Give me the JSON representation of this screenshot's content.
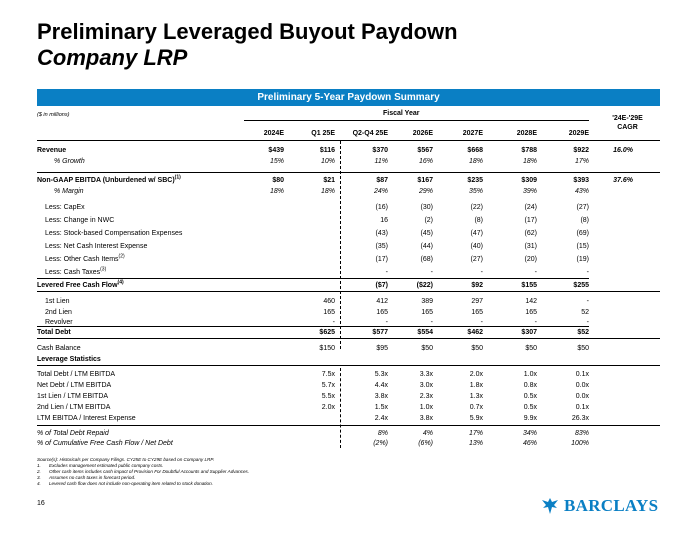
{
  "title": {
    "line1": "Preliminary Leveraged Buyout Paydown",
    "line2": "Company LRP"
  },
  "banner": "Preliminary 5-Year Paydown Summary",
  "units": "($ in millions)",
  "fiscal_year_label": "Fiscal Year",
  "cagr_header": {
    "line1": "'24E-'29E",
    "line2": "CAGR"
  },
  "columns": [
    "2024E",
    "Q1 25E",
    "Q2-Q4 25E",
    "2026E",
    "2027E",
    "2028E",
    "2029E"
  ],
  "rows": {
    "revenue": {
      "label": "Revenue",
      "v": [
        "$439",
        "$116",
        "$370",
        "$567",
        "$668",
        "$788",
        "$922"
      ],
      "cagr": "16.0%"
    },
    "growth": {
      "label": "% Growth",
      "v": [
        "15%",
        "10%",
        "11%",
        "16%",
        "18%",
        "18%",
        "17%"
      ]
    },
    "ebitda": {
      "label": "Non-GAAP EBITDA (Unburdened w/ SBC)",
      "sup": "(1)",
      "v": [
        "$80",
        "$21",
        "$87",
        "$167",
        "$235",
        "$309",
        "$393"
      ],
      "cagr": "37.6%"
    },
    "margin": {
      "label": "% Margin",
      "v": [
        "18%",
        "18%",
        "24%",
        "29%",
        "35%",
        "39%",
        "43%"
      ]
    },
    "capex": {
      "label": "Less: CapEx",
      "v": [
        "",
        "",
        "(16)",
        "(30)",
        "(22)",
        "(24)",
        "(27)"
      ]
    },
    "nwc": {
      "label": "Less: Change in NWC",
      "v": [
        "",
        "",
        "16",
        "(2)",
        "(8)",
        "(17)",
        "(8)"
      ]
    },
    "sbc": {
      "label": "Less: Stock-based Compensation Expenses",
      "v": [
        "",
        "",
        "(43)",
        "(45)",
        "(47)",
        "(62)",
        "(69)"
      ]
    },
    "interest": {
      "label": "Less: Net Cash Interest Expense",
      "v": [
        "",
        "",
        "(35)",
        "(44)",
        "(40)",
        "(31)",
        "(15)"
      ]
    },
    "other": {
      "label": "Less: Other Cash Items",
      "sup": "(2)",
      "v": [
        "",
        "",
        "(17)",
        "(68)",
        "(27)",
        "(20)",
        "(19)"
      ]
    },
    "taxes": {
      "label": "Less: Cash Taxes",
      "sup": "(3)",
      "v": [
        "",
        "",
        "-",
        "-",
        "-",
        "-",
        "-"
      ]
    },
    "lfcf": {
      "label": "Levered Free Cash Flow",
      "sup": "(4)",
      "v": [
        "",
        "",
        "($7)",
        "($22)",
        "$92",
        "$155",
        "$255"
      ]
    },
    "lien1": {
      "label": "1st Lien",
      "v": [
        "",
        "460",
        "412",
        "389",
        "297",
        "142",
        "-"
      ]
    },
    "lien2": {
      "label": "2nd Lien",
      "v": [
        "",
        "165",
        "165",
        "165",
        "165",
        "165",
        "52"
      ]
    },
    "revolver": {
      "label": "Revolver",
      "v": [
        "",
        "-",
        "-",
        "-",
        "-",
        "-",
        "-"
      ]
    },
    "totaldebt": {
      "label": "Total Debt",
      "v": [
        "",
        "$625",
        "$577",
        "$554",
        "$462",
        "$307",
        "$52"
      ]
    },
    "cash": {
      "label": "Cash Balance",
      "v": [
        "",
        "$150",
        "$95",
        "$50",
        "$50",
        "$50",
        "$50"
      ]
    },
    "lev_header": {
      "label": "Leverage Statistics"
    },
    "td_ebitda": {
      "label": "Total Debt / LTM EBITDA",
      "v": [
        "",
        "7.5x",
        "5.3x",
        "3.3x",
        "2.0x",
        "1.0x",
        "0.1x"
      ]
    },
    "nd_ebitda": {
      "label": "Net Debt / LTM EBITDA",
      "v": [
        "",
        "5.7x",
        "4.4x",
        "3.0x",
        "1.8x",
        "0.8x",
        "0.0x"
      ]
    },
    "l1_ebitda": {
      "label": "1st Lien / LTM EBITDA",
      "v": [
        "",
        "5.5x",
        "3.8x",
        "2.3x",
        "1.3x",
        "0.5x",
        "0.0x"
      ]
    },
    "l2_ebitda": {
      "label": "2nd Lien / LTM EBITDA",
      "v": [
        "",
        "2.0x",
        "1.5x",
        "1.0x",
        "0.7x",
        "0.5x",
        "0.1x"
      ]
    },
    "cov": {
      "label": "LTM EBITDA / Interest Expense",
      "v": [
        "",
        "",
        "2.4x",
        "3.8x",
        "5.9x",
        "9.9x",
        "26.3x"
      ]
    },
    "repaid": {
      "label": "% of Total Debt Repaid",
      "v": [
        "",
        "",
        "8%",
        "4%",
        "17%",
        "34%",
        "83%"
      ]
    },
    "cumfcf": {
      "label": "% of Cumulative Free Cash Flow / Net Debt",
      "v": [
        "",
        "",
        "(2%)",
        "(6%)",
        "13%",
        "46%",
        "100%"
      ]
    }
  },
  "notes": {
    "source": "Source(s): Historicals per Company Filings. CY25E to CY29E based on Company LRP.",
    "items": [
      {
        "num": "1.",
        "text": "Excludes management estimated public company costs."
      },
      {
        "num": "2.",
        "text": "Other cash items includes cash impact of Provision For Doubtful Accounts and Supplier Advances."
      },
      {
        "num": "3.",
        "text": "Assumes no cash taxes in forecast period."
      },
      {
        "num": "4.",
        "text": "Levered cash flow does not include non-operating item related to stock donation."
      }
    ]
  },
  "page_number": "16",
  "logo_text": "BARCLAYS",
  "colors": {
    "accent": "#0a7fc4"
  }
}
